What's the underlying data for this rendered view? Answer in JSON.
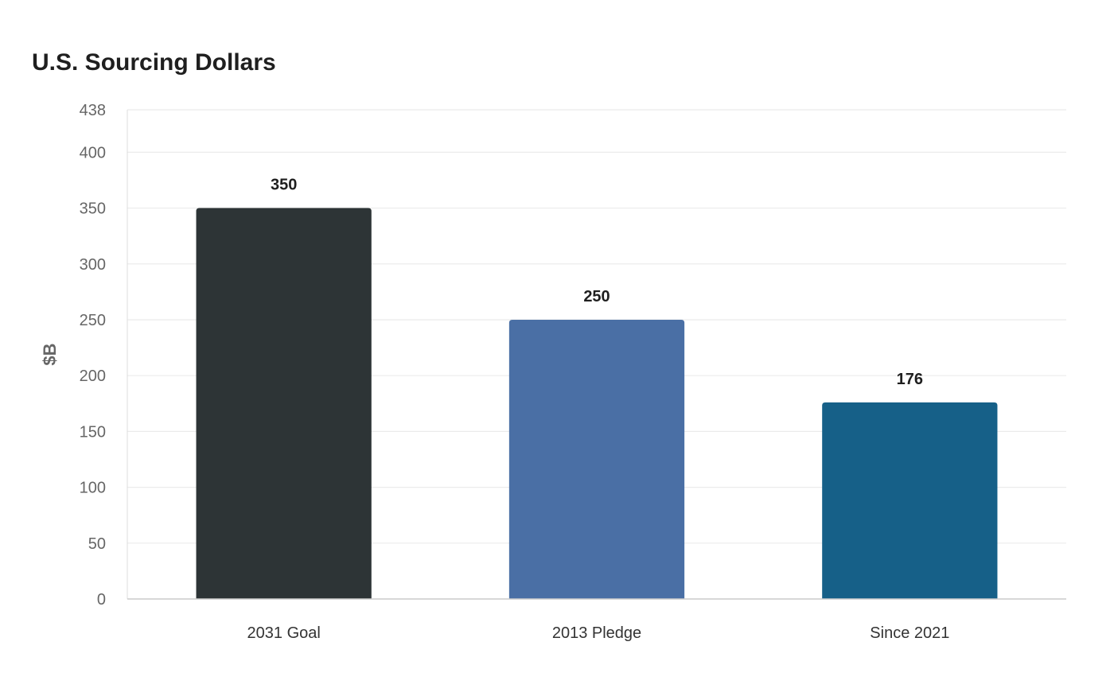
{
  "chart_data": {
    "type": "bar",
    "title": "U.S. Sourcing Dollars",
    "xlabel": "",
    "ylabel": "$B",
    "categories": [
      "2031 Goal",
      "2013 Pledge",
      "Since 2021"
    ],
    "values": [
      350,
      250,
      176
    ],
    "value_labels": [
      "350",
      "250",
      "176"
    ],
    "bar_colors": [
      "#2d3436",
      "#4a6fa5",
      "#166088"
    ],
    "ylim": [
      0,
      438
    ],
    "yticks": [
      0,
      50,
      100,
      150,
      200,
      250,
      300,
      350,
      400,
      438
    ],
    "grid": true,
    "legend": "none"
  }
}
